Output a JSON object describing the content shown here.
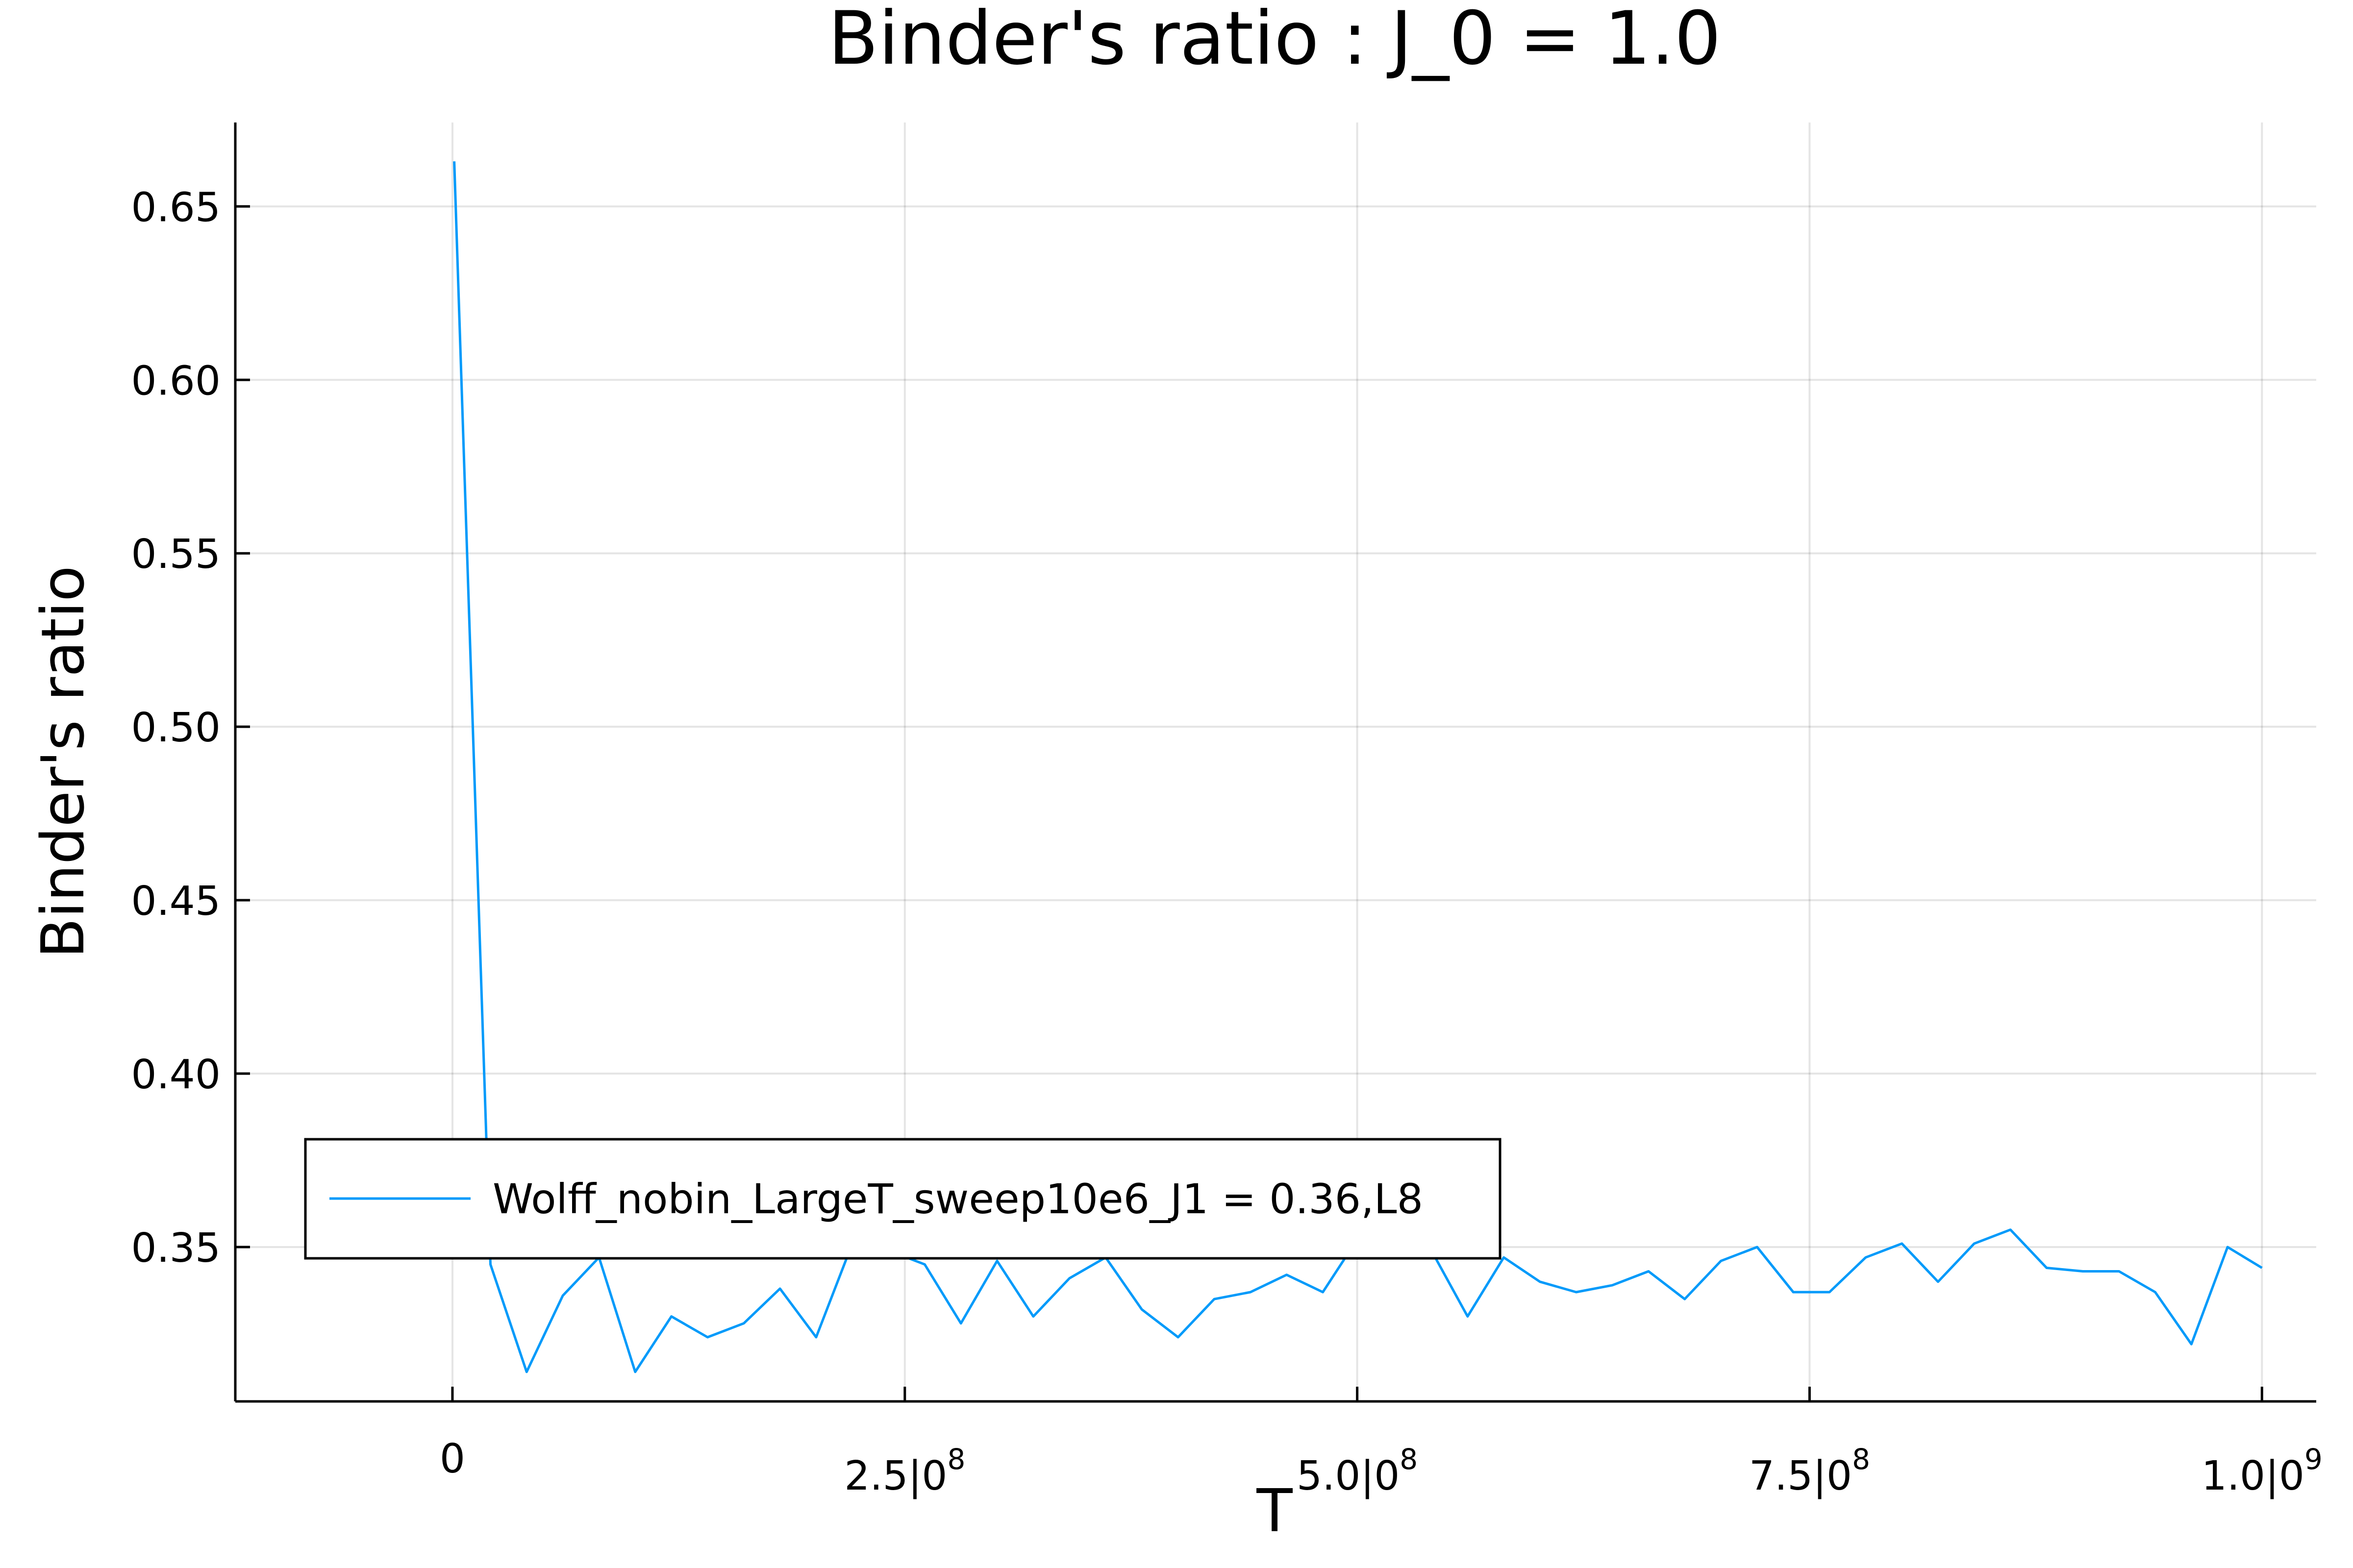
{
  "chart_data": {
    "type": "line",
    "title": "Binder's ratio : J_0 = 1.0",
    "xlabel": "T",
    "ylabel": "Binder's ratio",
    "xlim": [
      -120000000,
      1030000000
    ],
    "ylim": [
      0.3055,
      0.6742
    ],
    "grid": true,
    "legend_position": "bottom-left",
    "x_ticks": [
      {
        "value": 0,
        "mantissa": "0",
        "exponent": ""
      },
      {
        "value": 250000000,
        "mantissa": "2.5|0",
        "exponent": "8"
      },
      {
        "value": 500000000,
        "mantissa": "5.0|0",
        "exponent": "8"
      },
      {
        "value": 750000000,
        "mantissa": "7.5|0",
        "exponent": "8"
      },
      {
        "value": 1000000000,
        "mantissa": "1.0|0",
        "exponent": "9"
      }
    ],
    "y_ticks": [
      {
        "value": 0.35,
        "label": "0.35"
      },
      {
        "value": 0.4,
        "label": "0.40"
      },
      {
        "value": 0.45,
        "label": "0.45"
      },
      {
        "value": 0.5,
        "label": "0.50"
      },
      {
        "value": 0.55,
        "label": "0.55"
      },
      {
        "value": 0.6,
        "label": "0.60"
      },
      {
        "value": 0.65,
        "label": "0.65"
      }
    ],
    "series": [
      {
        "name": "Wolff_nobin_LargeT_sweep10e6_J1 = 0.36,L8",
        "color": "#009AFA",
        "x": [
          1000000,
          21000000,
          41000000,
          61000000,
          81000000,
          101000000,
          121000000,
          141000000,
          161000000,
          181000000,
          201000000,
          221000000,
          241000000,
          261000000,
          281000000,
          301000000,
          321000000,
          341000000,
          361000000,
          381000000,
          401000000,
          421000000,
          441000000,
          461000000,
          481000000,
          501000000,
          521000000,
          541000000,
          561000000,
          581000000,
          601000000,
          621000000,
          641000000,
          661000000,
          681000000,
          701000000,
          721000000,
          741000000,
          761000000,
          781000000,
          801000000,
          821000000,
          841000000,
          861000000,
          881000000,
          901000000,
          921000000,
          941000000,
          961000000,
          981000000,
          1000000000
        ],
        "values": [
          0.663,
          0.345,
          0.314,
          0.336,
          0.347,
          0.314,
          0.33,
          0.324,
          0.328,
          0.338,
          0.324,
          0.351,
          0.349,
          0.345,
          0.328,
          0.346,
          0.33,
          0.341,
          0.347,
          0.332,
          0.324,
          0.335,
          0.337,
          0.342,
          0.337,
          0.353,
          0.351,
          0.349,
          0.33,
          0.347,
          0.34,
          0.337,
          0.339,
          0.343,
          0.335,
          0.346,
          0.35,
          0.337,
          0.337,
          0.347,
          0.351,
          0.34,
          0.351,
          0.355,
          0.344,
          0.343,
          0.343,
          0.337,
          0.322,
          0.35,
          0.344
        ]
      }
    ]
  }
}
